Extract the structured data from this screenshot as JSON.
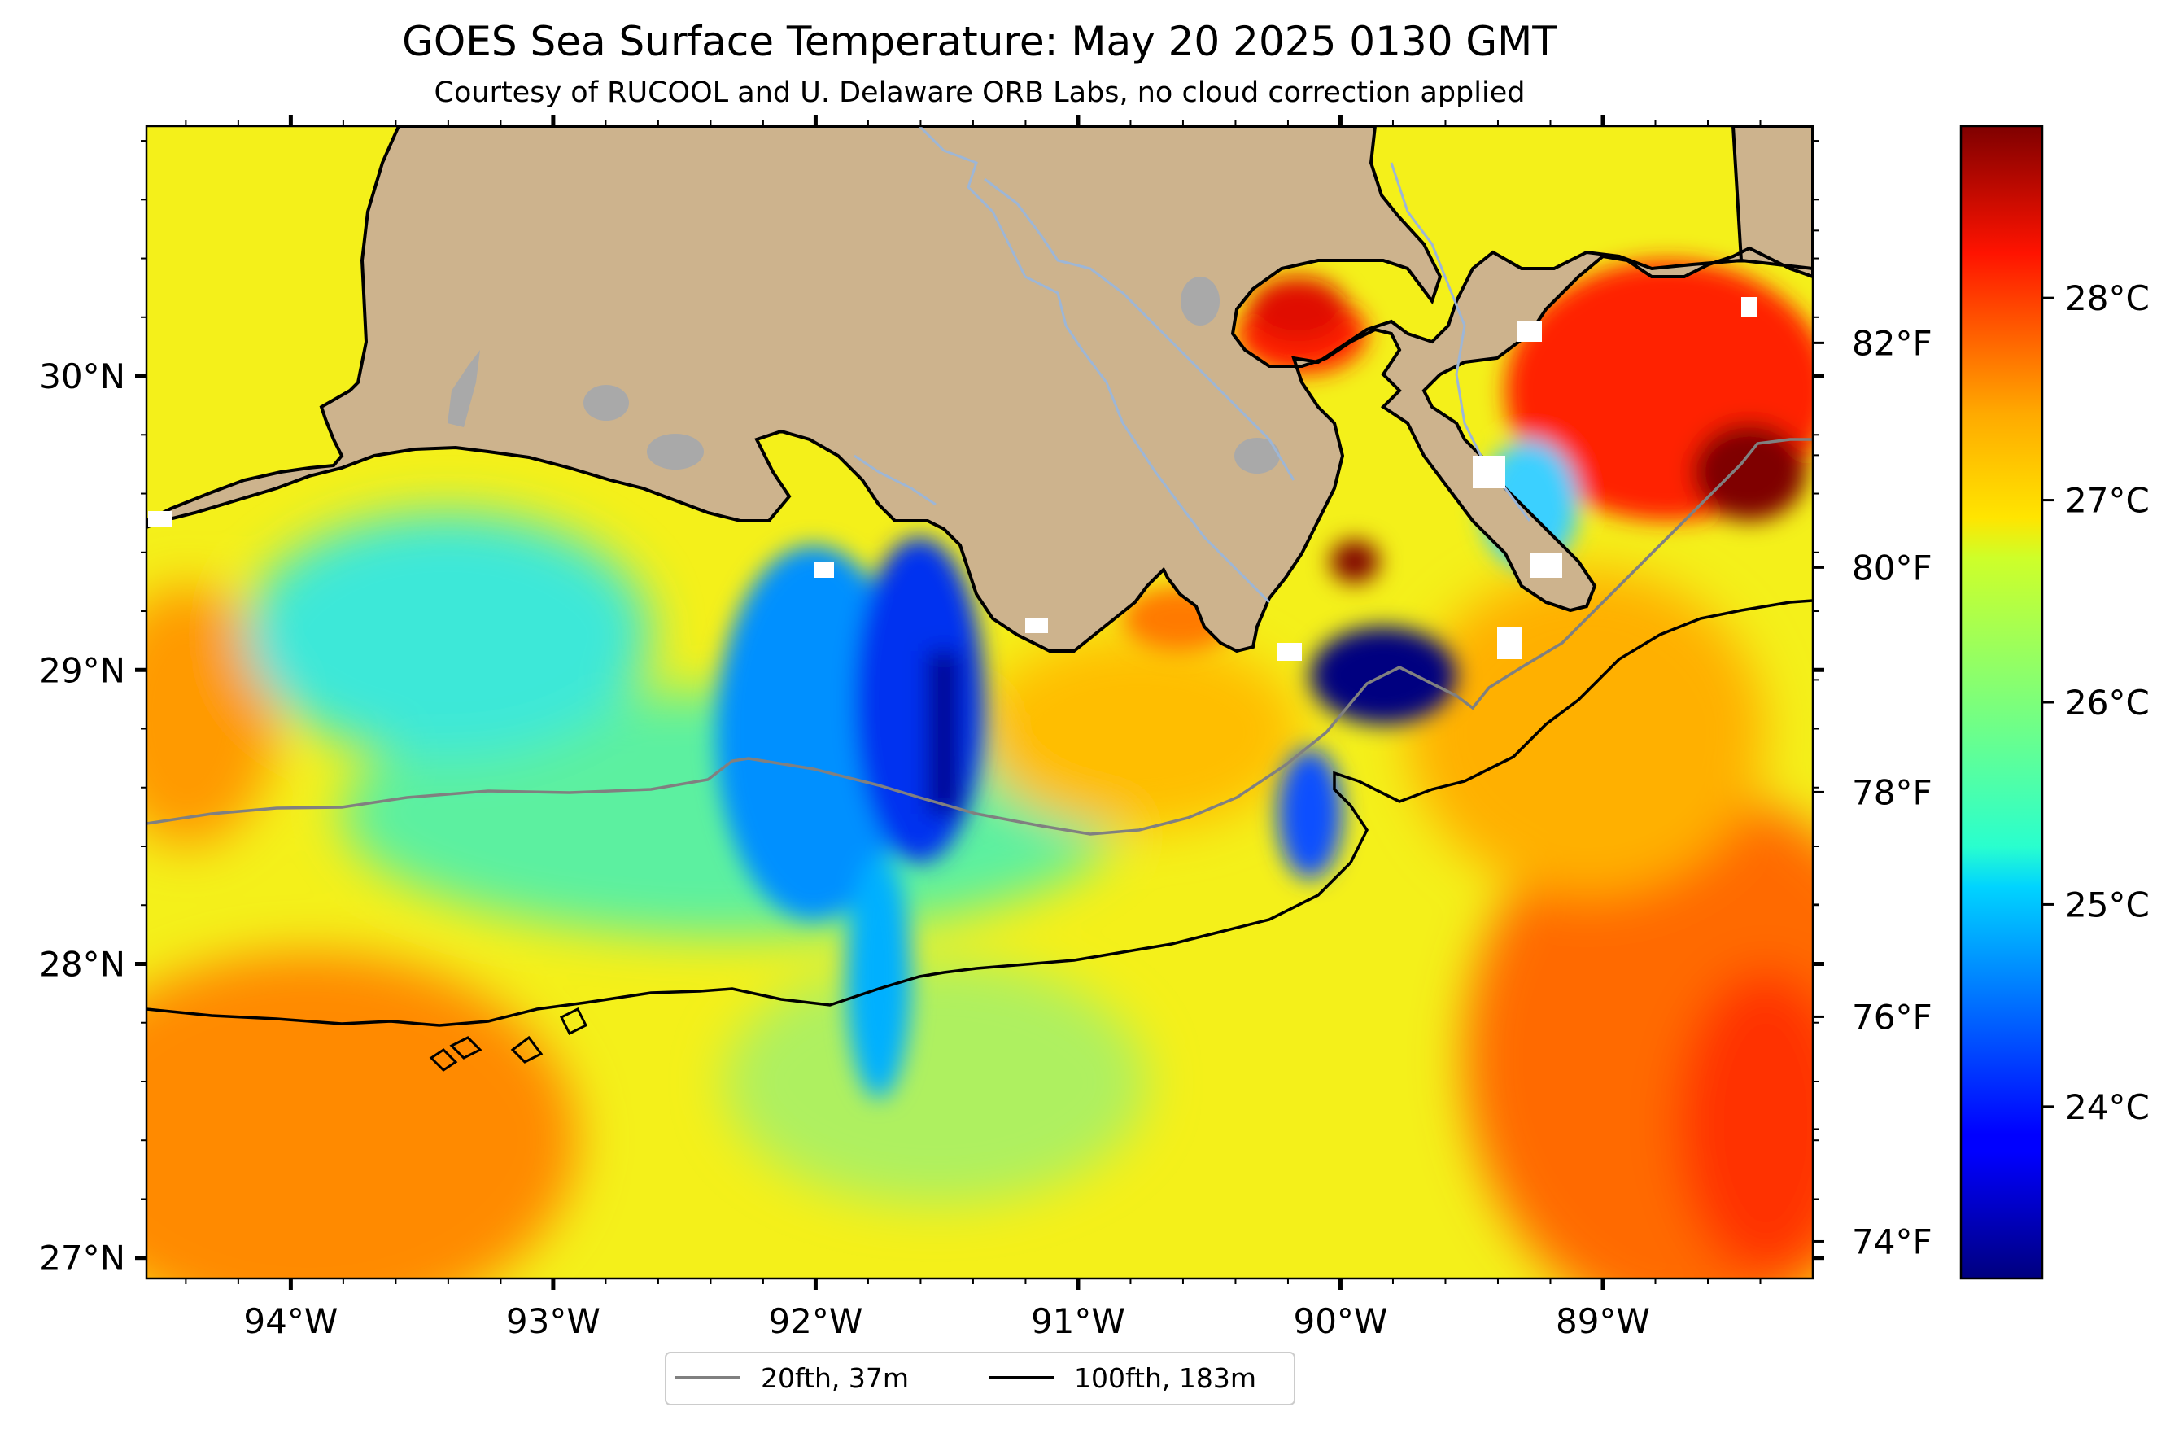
{
  "title": "GOES Sea Surface Temperature: May 20 2025 0130 GMT",
  "subtitle": "Courtesy of RUCOOL and U. Delaware ORB Labs, no cloud correction applied",
  "map": {
    "lon_range": [
      -94.55,
      -88.2
    ],
    "lat_range": [
      26.93,
      30.85
    ],
    "land_color": "#cdb38d",
    "water_body_color": "#a9a9a9",
    "river_color": "#9db6d6",
    "lon_ticks": [
      {
        "value": -94,
        "label": "94°W"
      },
      {
        "value": -93,
        "label": "93°W"
      },
      {
        "value": -92,
        "label": "92°W"
      },
      {
        "value": -91,
        "label": "91°W"
      },
      {
        "value": -90,
        "label": "90°W"
      },
      {
        "value": -89,
        "label": "89°W"
      }
    ],
    "lat_ticks": [
      {
        "value": 30,
        "label": "30°N"
      },
      {
        "value": 29,
        "label": "29°N"
      },
      {
        "value": 28,
        "label": "28°N"
      },
      {
        "value": 27,
        "label": "27°N"
      }
    ]
  },
  "isobaths": [
    {
      "label": "20fth, 37m",
      "color": "#808080"
    },
    {
      "label": "100fth, 183m",
      "color": "#000000"
    }
  ],
  "colorbar": {
    "colormap": "jet",
    "range_c": [
      23.15,
      28.85
    ],
    "celsius_ticks": [
      {
        "value": 24,
        "label": "24°C"
      },
      {
        "value": 25,
        "label": "25°C"
      },
      {
        "value": 26,
        "label": "26°C"
      },
      {
        "value": 27,
        "label": "27°C"
      },
      {
        "value": 28,
        "label": "28°C"
      }
    ],
    "fahrenheit_ticks": [
      {
        "value": 74,
        "label": "74°F"
      },
      {
        "value": 76,
        "label": "76°F"
      },
      {
        "value": 78,
        "label": "78°F"
      },
      {
        "value": 80,
        "label": "80°F"
      },
      {
        "value": 82,
        "label": "82°F"
      }
    ]
  }
}
